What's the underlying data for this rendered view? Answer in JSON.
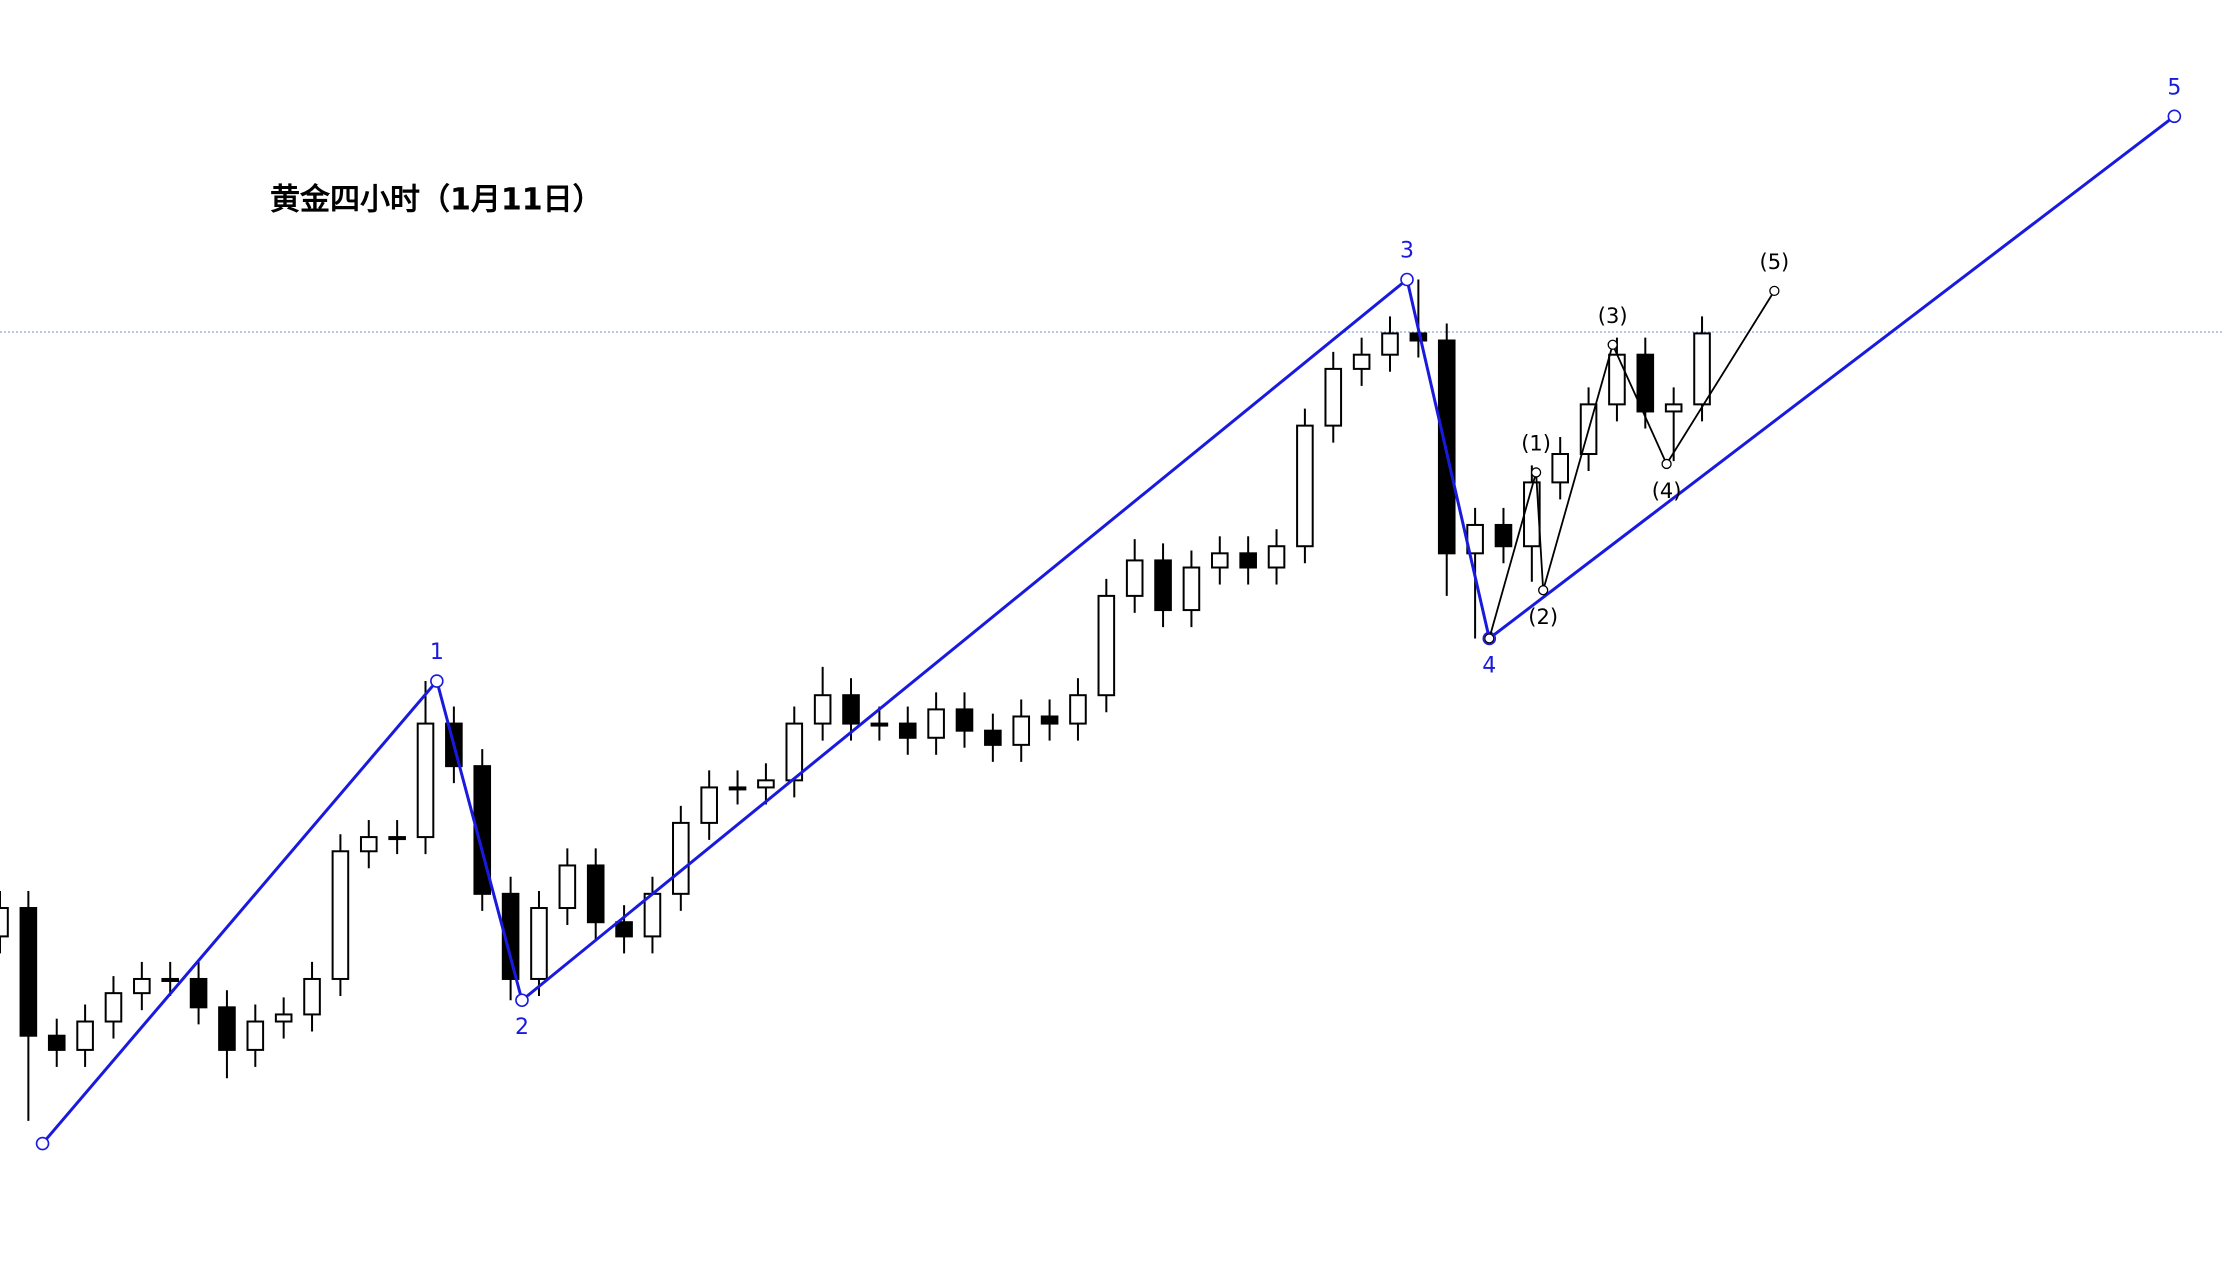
{
  "chart_data": {
    "type": "candlestick",
    "title": "黄金四小时（1月11日）",
    "xlim": [
      0,
      1568
    ],
    "ylim": [
      -5,
      900
    ],
    "color": "#000000",
    "price_line": 666,
    "price_line_color": "#6f8fd8",
    "x": [
      0,
      20,
      40,
      60,
      80,
      100,
      120,
      140,
      160,
      180,
      200,
      220,
      240,
      260,
      280,
      300,
      320,
      340,
      360,
      380,
      400,
      420,
      440,
      460,
      480,
      500,
      520,
      540,
      560,
      580,
      600,
      620,
      640,
      660,
      680,
      700,
      720,
      740,
      760,
      780,
      800,
      820,
      840,
      860,
      880,
      900,
      920,
      940,
      960,
      980,
      1000,
      1020,
      1040,
      1060,
      1080,
      1100,
      1120,
      1140,
      1160,
      1180,
      1200
    ],
    "open": [
      240,
      260,
      170,
      160,
      180,
      200,
      210,
      210,
      190,
      160,
      180,
      185,
      210,
      300,
      310,
      310,
      390,
      360,
      270,
      210,
      260,
      290,
      250,
      240,
      270,
      320,
      345,
      345,
      350,
      390,
      410,
      390,
      390,
      380,
      400,
      385,
      375,
      395,
      390,
      410,
      480,
      505,
      470,
      500,
      510,
      500,
      515,
      600,
      640,
      650,
      665,
      660,
      510,
      530,
      515,
      560,
      580,
      615,
      650,
      610,
      615
    ],
    "high": [
      272,
      272,
      182,
      192,
      212,
      222,
      222,
      222,
      202,
      192,
      197,
      222,
      312,
      322,
      322,
      420,
      402,
      372,
      282,
      272,
      302,
      302,
      262,
      282,
      332,
      357,
      357,
      362,
      402,
      430,
      422,
      402,
      402,
      412,
      412,
      397,
      407,
      407,
      422,
      492,
      520,
      517,
      512,
      522,
      522,
      527,
      612,
      652,
      662,
      677,
      703,
      672,
      542,
      542,
      572,
      592,
      627,
      662,
      662,
      627,
      677
    ],
    "low": [
      228,
      110,
      148,
      148,
      168,
      188,
      198,
      178,
      140,
      148,
      168,
      173,
      198,
      288,
      298,
      298,
      348,
      258,
      195,
      198,
      248,
      238,
      228,
      228,
      258,
      308,
      333,
      333,
      338,
      378,
      378,
      378,
      368,
      368,
      373,
      363,
      363,
      378,
      378,
      398,
      468,
      458,
      458,
      488,
      488,
      488,
      503,
      588,
      628,
      638,
      648,
      480,
      450,
      503,
      490,
      548,
      568,
      603,
      598,
      575,
      603
    ],
    "close": [
      260,
      170,
      160,
      180,
      200,
      210,
      210,
      190,
      160,
      180,
      185,
      210,
      300,
      310,
      310,
      390,
      360,
      270,
      210,
      260,
      290,
      250,
      240,
      270,
      320,
      345,
      345,
      350,
      390,
      410,
      390,
      390,
      380,
      400,
      385,
      375,
      395,
      390,
      410,
      480,
      505,
      470,
      500,
      510,
      500,
      515,
      600,
      640,
      650,
      665,
      660,
      510,
      530,
      515,
      560,
      580,
      615,
      650,
      610,
      615,
      665
    ],
    "waves": [
      {
        "color": "#1a1adf",
        "x": [
          30,
          308,
          368,
          992,
          1050,
          1533
        ],
        "values": [
          94,
          420,
          195,
          703,
          450,
          818
        ],
        "labels": [
          null,
          "1",
          "2",
          "3",
          "4",
          "5"
        ]
      },
      {
        "color": "#000000",
        "x": [
          1050,
          1083,
          1088,
          1137,
          1175,
          1251
        ],
        "values": [
          450,
          567,
          484,
          657,
          573,
          695
        ],
        "labels": [
          null,
          "(1)",
          "(2)",
          "(3)",
          "(4)",
          "(5)"
        ]
      }
    ]
  }
}
